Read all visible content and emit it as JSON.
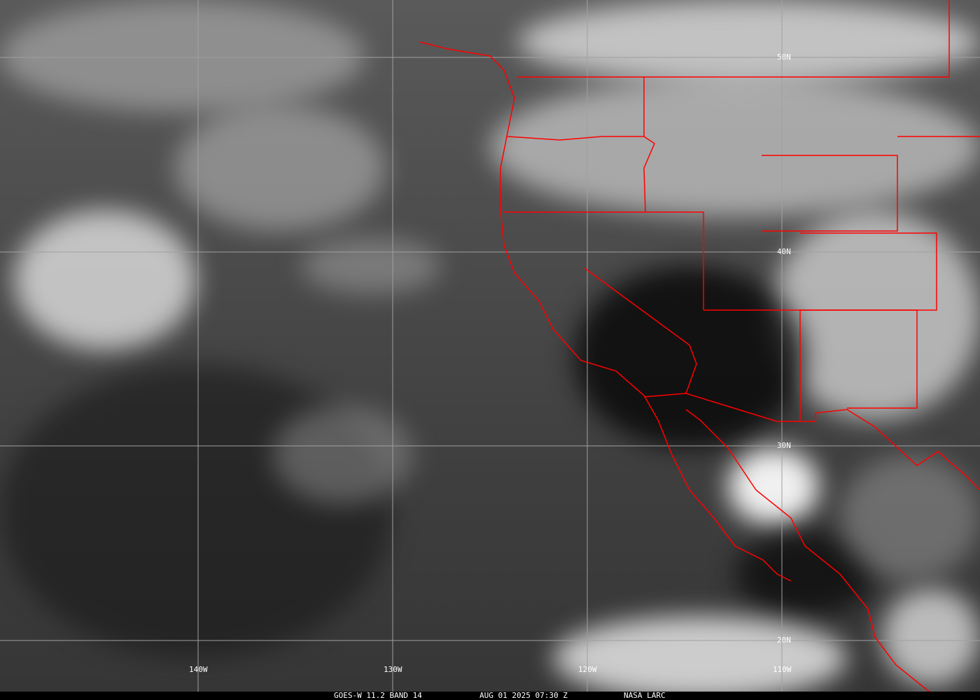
{
  "map": {
    "latitude_labels": [
      "50N",
      "40N",
      "30N",
      "20N"
    ],
    "longitude_labels": [
      "140W",
      "130W",
      "120W",
      "110W"
    ],
    "border_color": "#ff0000",
    "grid_color": "#a0a0a0"
  },
  "caption": {
    "product": "GOES-W 11.2 BAND 14",
    "datetime": "AUG 01 2025 07:30 Z",
    "source": "NASA LARC"
  }
}
